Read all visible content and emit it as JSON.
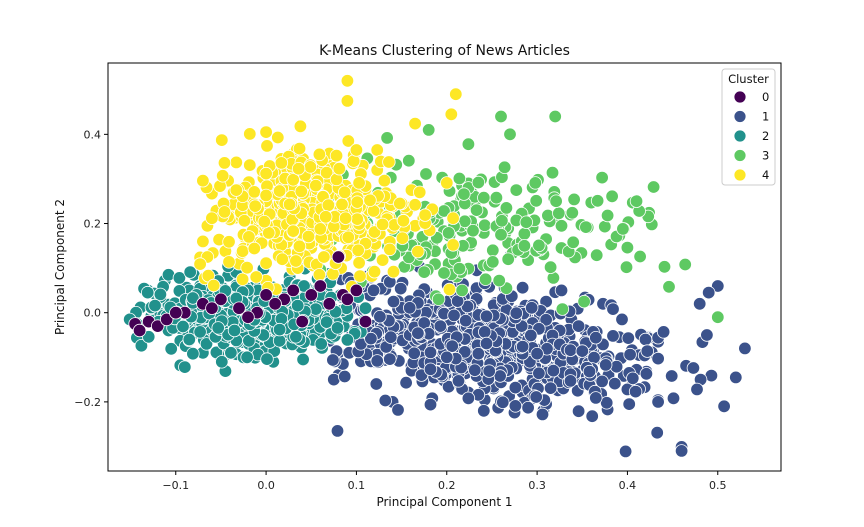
{
  "chart_data": {
    "type": "scatter",
    "title": "K-Means Clustering of News Articles",
    "xlabel": "Principal Component 1",
    "ylabel": "Principal Component 2",
    "xlim": [
      -0.175,
      0.57
    ],
    "ylim": [
      -0.355,
      0.56
    ],
    "xticks": [
      -0.1,
      0.0,
      0.1,
      0.2,
      0.3,
      0.4,
      0.5
    ],
    "xtick_labels": [
      "−0.1",
      "0.0",
      "0.1",
      "0.2",
      "0.3",
      "0.4",
      "0.5"
    ],
    "yticks": [
      -0.2,
      0.0,
      0.2,
      0.4
    ],
    "ytick_labels": [
      "−0.2",
      "0.0",
      "0.2",
      "0.4"
    ],
    "grid": false,
    "legend": {
      "title": "Cluster",
      "position": "top-right"
    },
    "series": [
      {
        "name": "0",
        "color": "#440154",
        "points": [
          [
            -0.145,
            -0.025
          ],
          [
            -0.13,
            -0.02
          ],
          [
            -0.12,
            -0.03
          ],
          [
            -0.14,
            -0.04
          ],
          [
            -0.11,
            -0.015
          ],
          [
            -0.09,
            0.0
          ],
          [
            -0.07,
            0.02
          ],
          [
            -0.05,
            0.03
          ],
          [
            -0.03,
            0.01
          ],
          [
            -0.01,
            0.0
          ],
          [
            0.02,
            0.03
          ],
          [
            0.03,
            0.05
          ],
          [
            0.05,
            0.04
          ],
          [
            0.07,
            0.02
          ],
          [
            0.08,
            0.125
          ],
          [
            0.085,
            0.04
          ],
          [
            0.09,
            0.03
          ],
          [
            0.11,
            -0.02
          ],
          [
            0.04,
            -0.02
          ],
          [
            -0.02,
            -0.01
          ],
          [
            0.01,
            0.02
          ],
          [
            -0.06,
            0.01
          ],
          [
            0.06,
            0.06
          ],
          [
            0.1,
            0.05
          ],
          [
            0.0,
            0.04
          ],
          [
            -0.1,
            0.0
          ]
        ]
      },
      {
        "name": "1",
        "color": "#3b528b",
        "points": []
      },
      {
        "name": "2",
        "color": "#21918c",
        "points": []
      },
      {
        "name": "3",
        "color": "#5ec962",
        "points": []
      },
      {
        "name": "4",
        "color": "#fde725",
        "points": []
      }
    ]
  }
}
